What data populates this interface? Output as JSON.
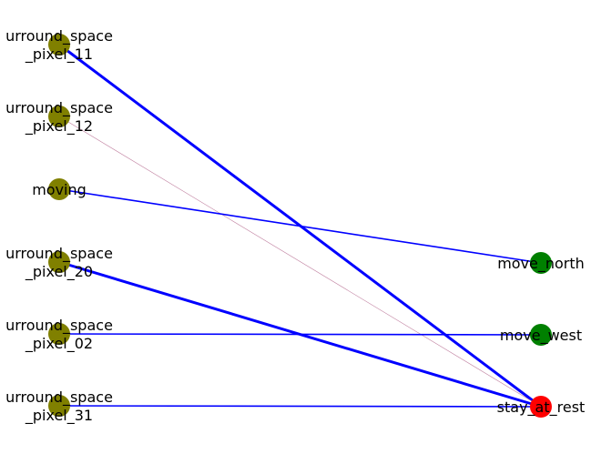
{
  "graph": {
    "colors": {
      "input_node": "#808000",
      "output_node_green": "#008000",
      "output_node_red": "#ff0000",
      "edge_strong": "#0000ff",
      "edge_weak": "#c080a0"
    },
    "nodes": [
      {
        "id": "in1",
        "lines": [
          "urround_space",
          "_pixel_11"
        ],
        "color": "#808000"
      },
      {
        "id": "in2",
        "lines": [
          "urround_space",
          "_pixel_12"
        ],
        "color": "#808000"
      },
      {
        "id": "in3",
        "lines": [
          "moving"
        ],
        "color": "#808000"
      },
      {
        "id": "in4",
        "lines": [
          "urround_space",
          "_pixel_20"
        ],
        "color": "#808000"
      },
      {
        "id": "in5",
        "lines": [
          "urround_space",
          "_pixel_02"
        ],
        "color": "#808000"
      },
      {
        "id": "in6",
        "lines": [
          "urround_space",
          "_pixel_31"
        ],
        "color": "#808000"
      },
      {
        "id": "out1",
        "lines": [
          "move_north"
        ],
        "color": "#008000"
      },
      {
        "id": "out2",
        "lines": [
          "move_west"
        ],
        "color": "#008000"
      },
      {
        "id": "out3",
        "lines": [
          "stay_at_rest"
        ],
        "color": "#ff0000"
      }
    ],
    "edges": [
      {
        "from": "in1",
        "to": "out3",
        "weight": "strong"
      },
      {
        "from": "in2",
        "to": "out3",
        "weight": "faint"
      },
      {
        "from": "in3",
        "to": "out1",
        "weight": "normal"
      },
      {
        "from": "in4",
        "to": "out3",
        "weight": "strong"
      },
      {
        "from": "in5",
        "to": "out2",
        "weight": "normal"
      },
      {
        "from": "in6",
        "to": "out3",
        "weight": "normal"
      }
    ]
  }
}
